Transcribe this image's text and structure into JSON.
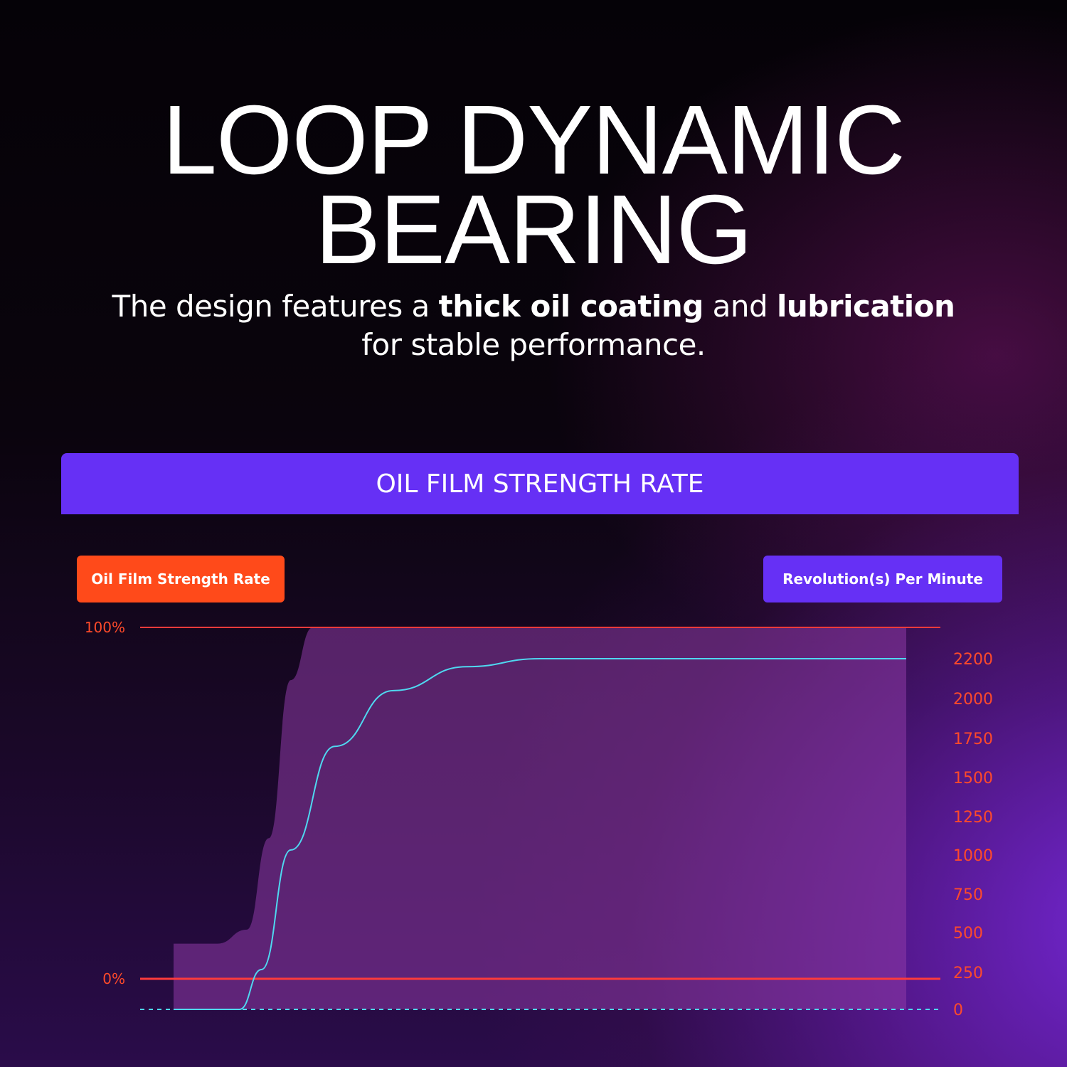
{
  "title_line1": "LOOP DYNAMIC",
  "title_line2": "BEARING",
  "subtitle": {
    "p1": "The design features a ",
    "b1": "thick oil coating",
    "p2": " and ",
    "b2": "lubrication",
    "line2": "for stable performance."
  },
  "banner": "OIL FILM STRENGTH RATE",
  "legend": {
    "left": "Oil Film Strength Rate",
    "right": "Revolution(s) Per Minute"
  },
  "colors": {
    "accent_purple": "#6630f5",
    "accent_orange": "#ff4a1a",
    "rpm_line": "#4fd8f0",
    "strength_fill": "#8e3aa6"
  },
  "chart_data": {
    "type": "area",
    "title": "OIL FILM STRENGTH RATE",
    "left_axis": {
      "label": "Oil Film Strength Rate",
      "ticks": [
        "100%",
        "0%"
      ]
    },
    "right_axis": {
      "label": "Revolution(s) Per Minute",
      "ticks": [
        "2200",
        "2000",
        "1750",
        "1500",
        "1250",
        "1000",
        "750",
        "500",
        "250",
        "0"
      ]
    },
    "series": [
      {
        "name": "Oil Film Strength Rate",
        "kind": "area",
        "points": [
          [
            0,
            10
          ],
          [
            0.06,
            10
          ],
          [
            0.1,
            14
          ],
          [
            0.13,
            40
          ],
          [
            0.16,
            85
          ],
          [
            0.19,
            100
          ],
          [
            1,
            100
          ]
        ]
      },
      {
        "name": "Revolution(s) Per Minute",
        "kind": "line",
        "points": [
          [
            0,
            0
          ],
          [
            0.09,
            0
          ],
          [
            0.12,
            250
          ],
          [
            0.16,
            1000
          ],
          [
            0.22,
            1650
          ],
          [
            0.3,
            2000
          ],
          [
            0.4,
            2150
          ],
          [
            0.5,
            2200
          ],
          [
            1,
            2200
          ]
        ]
      }
    ]
  }
}
